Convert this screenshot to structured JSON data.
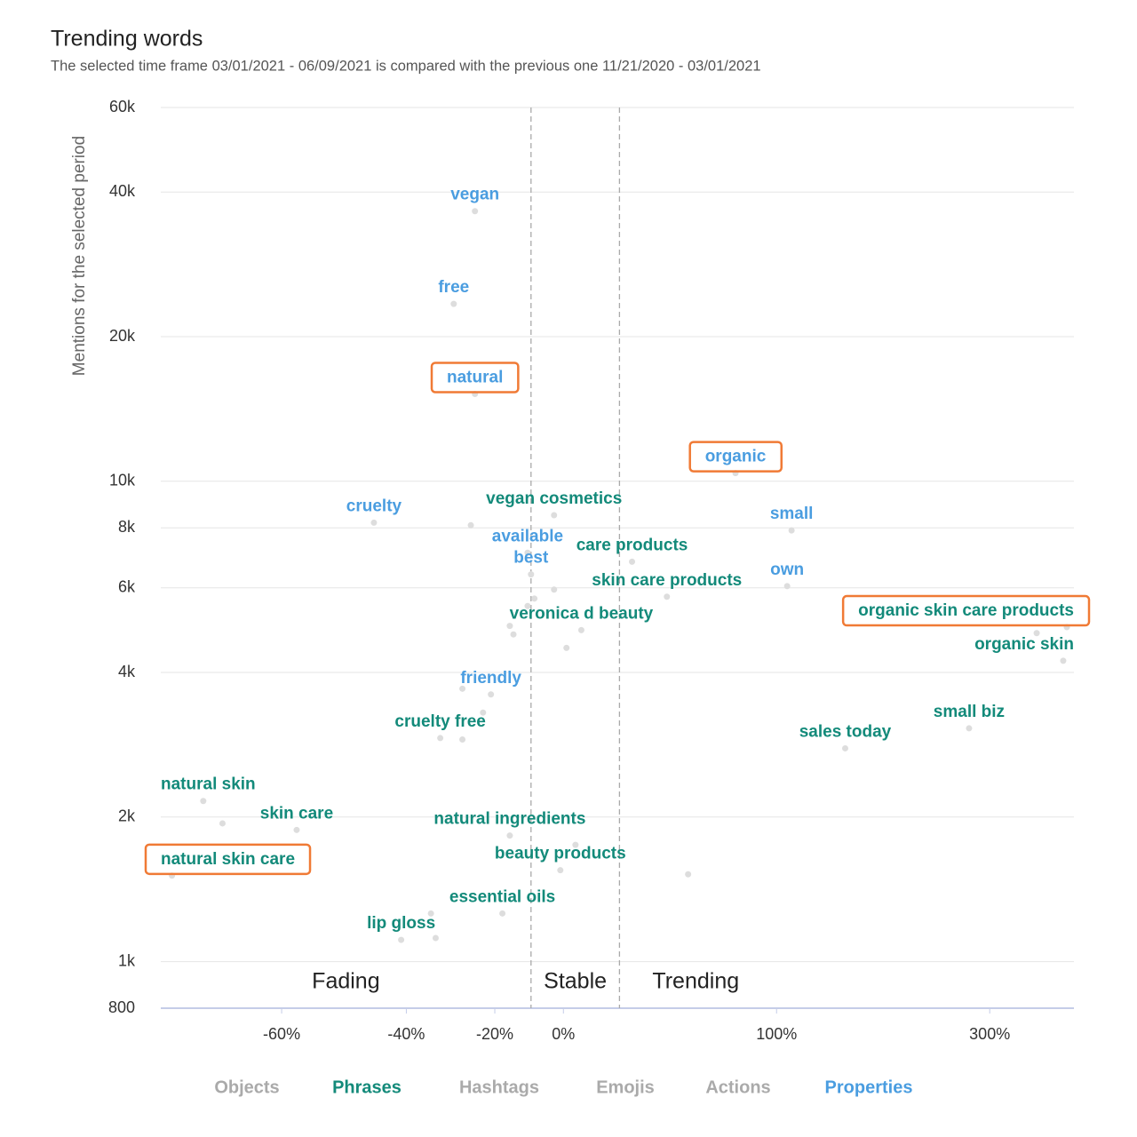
{
  "chart_data": {
    "type": "scatter",
    "title": "Trending words",
    "subtitle": "The selected time frame 03/01/2021 - 06/09/2021 is compared with the previous one 11/21/2020 - 03/01/2021",
    "y_label": "Mentions for the selected period",
    "ylim": [
      800,
      60000
    ],
    "y_log": true,
    "yticks": [
      800,
      {
        "value": 1000,
        "label": "1k"
      },
      {
        "value": 2000,
        "label": "2k"
      },
      {
        "value": 4000,
        "label": "4k"
      },
      {
        "value": 6000,
        "label": "6k"
      },
      {
        "value": 8000,
        "label": "8k"
      },
      {
        "value": 10000,
        "label": "10k"
      },
      {
        "value": 20000,
        "label": "20k"
      },
      {
        "value": 40000,
        "label": "40k"
      },
      {
        "value": 60000,
        "label": "60k"
      }
    ],
    "xlim": [
      -73,
      426
    ],
    "x_scale": "growth-log",
    "xticks": [
      {
        "value": -60,
        "label": "-60%"
      },
      {
        "value": -40,
        "label": "-40%"
      },
      {
        "value": -20,
        "label": "-20%"
      },
      {
        "value": 0,
        "label": "0%"
      },
      {
        "value": 100,
        "label": "100%"
      },
      {
        "value": 300,
        "label": "300%"
      }
    ],
    "grid": true,
    "zones": {
      "bounds": [
        -10,
        20
      ],
      "labels": [
        "Fading",
        "Stable",
        "Trending"
      ]
    },
    "highlight_color": "#f07a35",
    "series": [
      {
        "name": "Properties",
        "color": "#4a9de0",
        "labels": [
          "vegan",
          "free",
          "natural",
          "organic",
          "cruelty",
          "small",
          "available",
          "best",
          "own",
          "friendly"
        ],
        "x": [
          -25,
          -30,
          -25,
          75,
          -46,
          110,
          -11,
          -10,
          107,
          -21
        ],
        "y": [
          36500,
          23400,
          15200,
          10400,
          8200,
          7900,
          7100,
          6400,
          6050,
          3600
        ],
        "highlight": [
          2,
          3
        ]
      },
      {
        "name": "Phrases",
        "color": "#138a7a",
        "labels": [
          "vegan cosmetics",
          "care products",
          "skin care products",
          "organic skin care products",
          "veronica d beauty",
          "organic skin",
          "small biz",
          "sales today",
          "cruelty free",
          "natural skin",
          "skin care",
          "natural ingredients",
          "natural skin care",
          "beauty products",
          "essential oils",
          "lip gloss"
        ],
        "x": [
          -3,
          25,
          40,
          414,
          6,
          408,
          274,
          150,
          -33,
          -69,
          -58,
          -16,
          -72,
          -1,
          -18,
          -41
        ],
        "y": [
          8500,
          6800,
          5750,
          4970,
          4900,
          4230,
          3060,
          2780,
          2920,
          2160,
          1880,
          1830,
          1510,
          1550,
          1260,
          1110
        ],
        "highlight": [
          3,
          12
        ]
      }
    ],
    "other_points": {
      "color": "#dddddd",
      "x": [
        -26,
        -9,
        -11,
        -16,
        -15,
        1,
        -28,
        -23,
        -28,
        -67,
        4,
        50,
        -35,
        -34,
        366,
        -3
      ],
      "y": [
        8100,
        5700,
        5500,
        5000,
        4800,
        4500,
        3700,
        3300,
        2900,
        1940,
        1750,
        1520,
        1260,
        1120,
        4830,
        5950
      ]
    },
    "tabs": [
      {
        "name": "Objects",
        "color": "#aaaaaa"
      },
      {
        "name": "Phrases",
        "color": "#138a7a"
      },
      {
        "name": "Hashtags",
        "color": "#aaaaaa"
      },
      {
        "name": "Emojis",
        "color": "#aaaaaa"
      },
      {
        "name": "Actions",
        "color": "#aaaaaa"
      },
      {
        "name": "Properties",
        "color": "#4a9de0"
      }
    ]
  }
}
